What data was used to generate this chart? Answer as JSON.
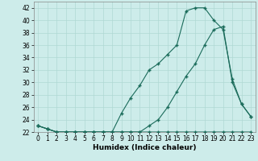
{
  "xlabel": "Humidex (Indice chaleur)",
  "ylabel": "",
  "background_color": "#cdecea",
  "grid_color": "#b0d8d4",
  "line_color": "#1a6b5a",
  "x_values": [
    0,
    1,
    2,
    3,
    4,
    5,
    6,
    7,
    8,
    9,
    10,
    11,
    12,
    13,
    14,
    15,
    16,
    17,
    18,
    19,
    20,
    21,
    22,
    23
  ],
  "line1": [
    23,
    22.5,
    22,
    22,
    22,
    22,
    22,
    22,
    22,
    22,
    22,
    22,
    22,
    22,
    22,
    22,
    22,
    22,
    22,
    22,
    22,
    22,
    22,
    22
  ],
  "line2": [
    23,
    22.5,
    22,
    22,
    22,
    22,
    22,
    22,
    22,
    25,
    27.5,
    29.5,
    32,
    33,
    34.5,
    36,
    41.5,
    42,
    42,
    40,
    38.5,
    30.5,
    26.5,
    24.5
  ],
  "line3": [
    23,
    22.5,
    22,
    22,
    22,
    22,
    22,
    22,
    22,
    22,
    22,
    22,
    23,
    24,
    26,
    28.5,
    31,
    33,
    36,
    38.5,
    39,
    30,
    26.5,
    24.5
  ],
  "ylim": [
    22,
    43
  ],
  "xlim": [
    -0.5,
    23.5
  ],
  "yticks": [
    22,
    24,
    26,
    28,
    30,
    32,
    34,
    36,
    38,
    40,
    42
  ],
  "xticks": [
    0,
    1,
    2,
    3,
    4,
    5,
    6,
    7,
    8,
    9,
    10,
    11,
    12,
    13,
    14,
    15,
    16,
    17,
    18,
    19,
    20,
    21,
    22,
    23
  ]
}
